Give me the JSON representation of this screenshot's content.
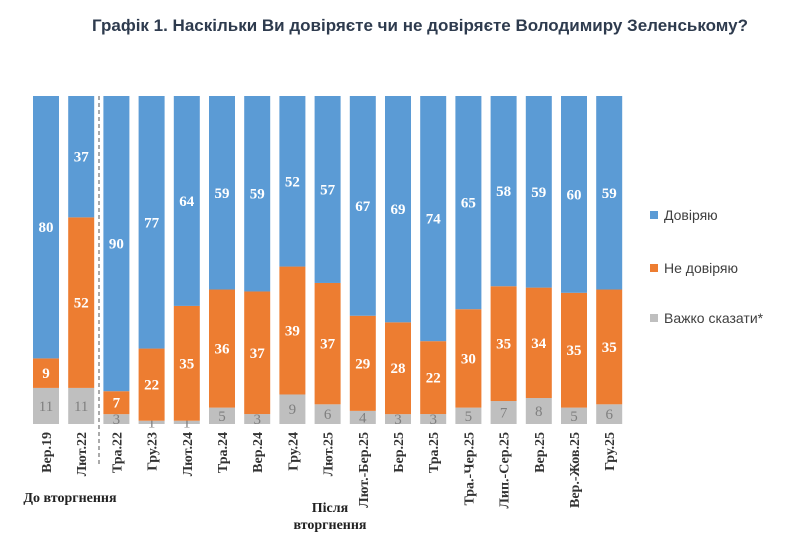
{
  "chart_data": {
    "type": "bar",
    "stacked": true,
    "title": "Графік 1. Наскільки Ви довіряєте чи не довіряєте Володимиру Зеленському?",
    "categories": [
      "Вер.19",
      "Лют.22",
      "Тра.22",
      "Гру.23",
      "Лют.24",
      "Тра.24",
      "Вер.24",
      "Гру.24",
      "Лют.25",
      "Лют.-Бер.25",
      "Бер.25",
      "Тра.25",
      "Тра.-Чер.25",
      "Лип.-Сер.25",
      "Вер.25",
      "Вер.-Жов.25",
      "Гру.25"
    ],
    "series": [
      {
        "name": "Довіряю",
        "color": "#5b9bd5",
        "values": [
          80,
          37,
          90,
          77,
          64,
          59,
          59,
          52,
          57,
          67,
          69,
          74,
          65,
          58,
          59,
          60,
          59
        ]
      },
      {
        "name": "Не довіряю",
        "color": "#ed7d31",
        "values": [
          9,
          52,
          7,
          22,
          35,
          36,
          37,
          39,
          37,
          29,
          28,
          22,
          30,
          35,
          34,
          35,
          35
        ]
      },
      {
        "name": "Важко сказати*",
        "color": "#bfbfbf",
        "values": [
          11,
          11,
          3,
          1,
          1,
          5,
          3,
          9,
          6,
          4,
          3,
          3,
          5,
          7,
          8,
          5,
          6
        ]
      }
    ],
    "legend_position": "right",
    "grid": false,
    "ylim": [
      0,
      100
    ],
    "annotations": {
      "before": "До вторгнення",
      "after": "Після вторгнення"
    }
  }
}
